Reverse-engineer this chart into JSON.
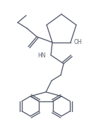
{
  "bg_color": "#ffffff",
  "line_color": "#5a6070",
  "line_width": 1.0,
  "text_color": "#5a6070",
  "figsize": [
    1.43,
    1.82
  ],
  "dpi": 100,
  "xlim": [
    0,
    143
  ],
  "ylim": [
    0,
    182
  ]
}
